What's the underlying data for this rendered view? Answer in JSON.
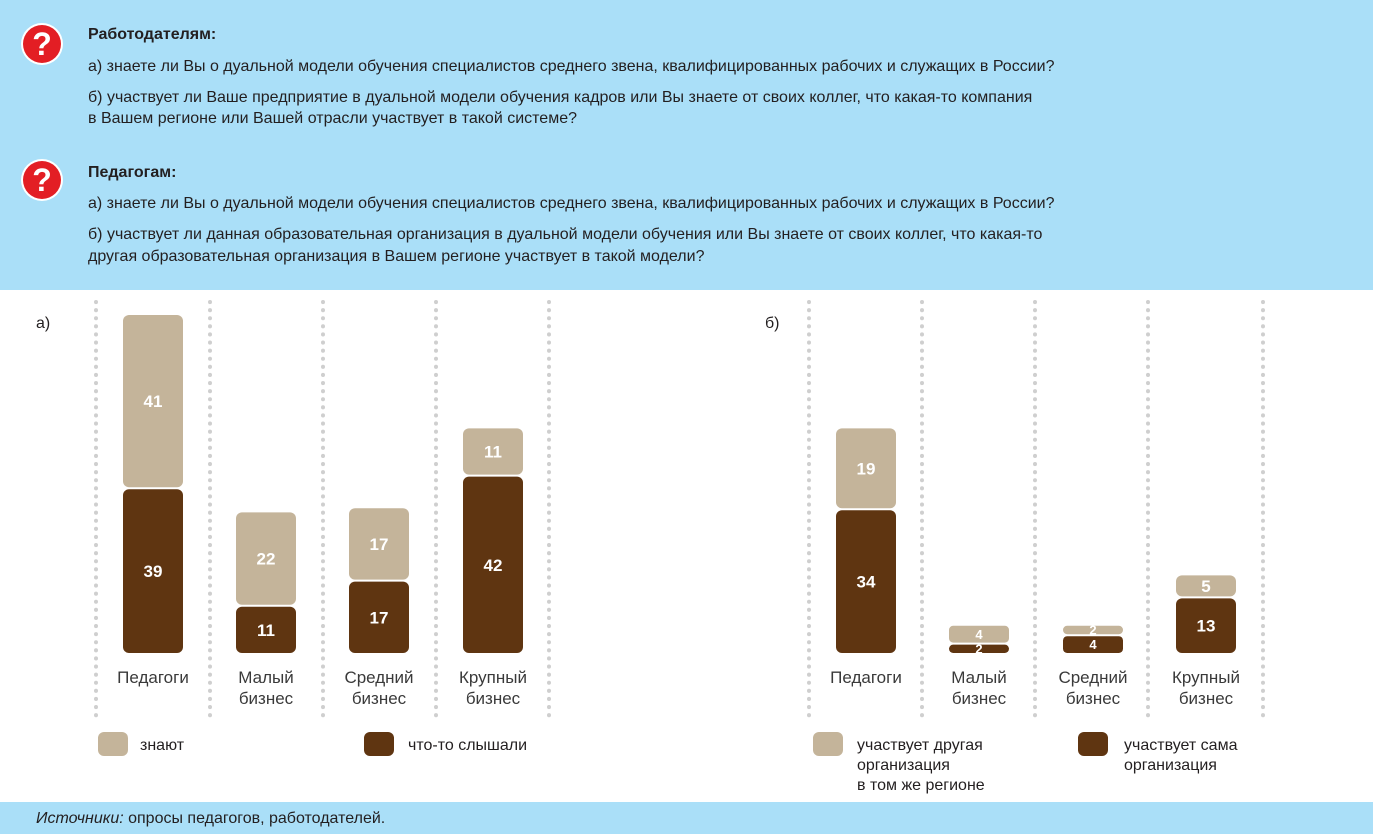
{
  "questions": {
    "employers": {
      "title": "Работодателям:",
      "a": "а) знаете ли Вы о дуальной модели обучения специалистов среднего звена, квалифицированных рабочих и служащих в России?",
      "b1": "б) участвует ли Ваше предприятие в дуальной модели обучения кадров или Вы знаете от своих коллег, что какая-то компания",
      "b2": "в Вашем регионе или Вашей отрасли участвует в такой системе?"
    },
    "teachers": {
      "title": "Педагогам:",
      "a": "а) знаете ли Вы о дуальной модели обучения специалистов среднего звена, квалифицированных рабочих и служащих в России?",
      "b1": "б) участвует ли данная образовательная организация в дуальной модели обучения или Вы знаете от своих коллег, что какая-то",
      "b2": "другая образовательная организация в Вашем регионе участвует в такой модели?"
    }
  },
  "colors": {
    "panel": "#aadff8",
    "light": "#c4b49a",
    "dark": "#5f3511",
    "question_icon": "#e31e24",
    "grid": "#cfcfcf"
  },
  "icons": [
    "question-mark-icon"
  ],
  "chart_data": [
    {
      "type": "bar",
      "stacked": true,
      "panel_label": "а)",
      "categories": [
        [
          "Педагоги"
        ],
        [
          "Малый",
          "бизнес"
        ],
        [
          "Средний",
          "бизнес"
        ],
        [
          "Крупный",
          "бизнес"
        ]
      ],
      "series": [
        {
          "name": "что-то слышали",
          "color": "#5f3511",
          "values": [
            39,
            11,
            17,
            42
          ]
        },
        {
          "name": "знают",
          "color": "#c4b49a",
          "values": [
            41,
            22,
            17,
            11
          ]
        }
      ],
      "legend": [
        {
          "label": [
            "знают"
          ],
          "color": "#c4b49a"
        },
        {
          "label": [
            "что-то слышали"
          ],
          "color": "#5f3511"
        }
      ]
    },
    {
      "type": "bar",
      "stacked": true,
      "panel_label": "б)",
      "categories": [
        [
          "Педагоги"
        ],
        [
          "Малый",
          "бизнес"
        ],
        [
          "Средний",
          "бизнес"
        ],
        [
          "Крупный",
          "бизнес"
        ]
      ],
      "series": [
        {
          "name": "участвует сама организация",
          "color": "#5f3511",
          "values": [
            34,
            2,
            4,
            13
          ]
        },
        {
          "name": "участвует другая организация в том же регионе",
          "color": "#c4b49a",
          "values": [
            19,
            4,
            2,
            5
          ]
        }
      ],
      "legend": [
        {
          "label": [
            "участвует другая",
            "организация",
            "в том же регионе"
          ],
          "color": "#c4b49a"
        },
        {
          "label": [
            "участвует сама",
            "организация"
          ],
          "color": "#5f3511"
        }
      ]
    }
  ],
  "footer": {
    "prefix": "Источники:",
    "text": " опросы педагогов, работодателей."
  }
}
